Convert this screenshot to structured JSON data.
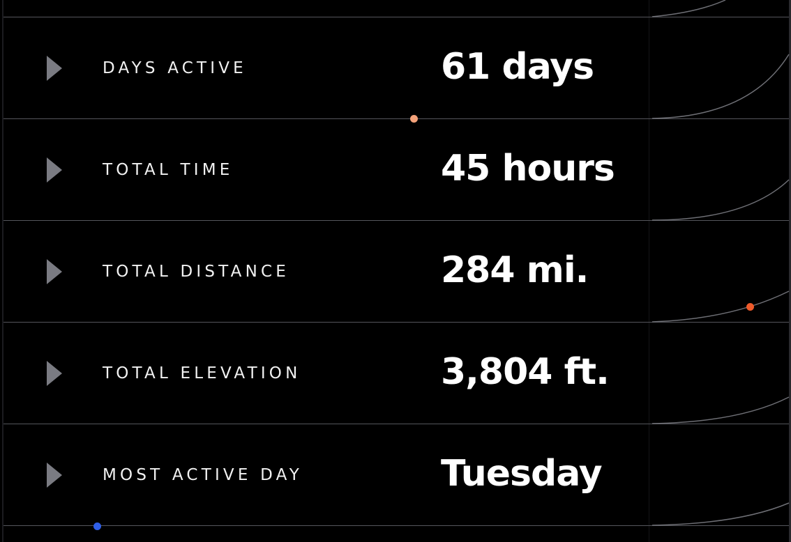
{
  "stats": [
    {
      "label": "DAYS ACTIVE",
      "value": "61 days"
    },
    {
      "label": "TOTAL TIME",
      "value": "45 hours"
    },
    {
      "label": "TOTAL DISTANCE",
      "value": "284 mi."
    },
    {
      "label": "TOTAL ELEVATION",
      "value": "3,804 ft."
    },
    {
      "label": "MOST ACTIVE DAY",
      "value": "Tuesday"
    }
  ],
  "icons": {
    "expand": "caret-right-icon"
  },
  "colors": {
    "background": "#000000",
    "divider": "#55565c",
    "text": "#ffffff",
    "label": "#f2f2f2",
    "icon": "#7a7b82",
    "curve": "#6e6f75",
    "dot_peach": "#f4a27a",
    "dot_orange": "#ee5a2a",
    "dot_blue": "#2f5fe8"
  }
}
